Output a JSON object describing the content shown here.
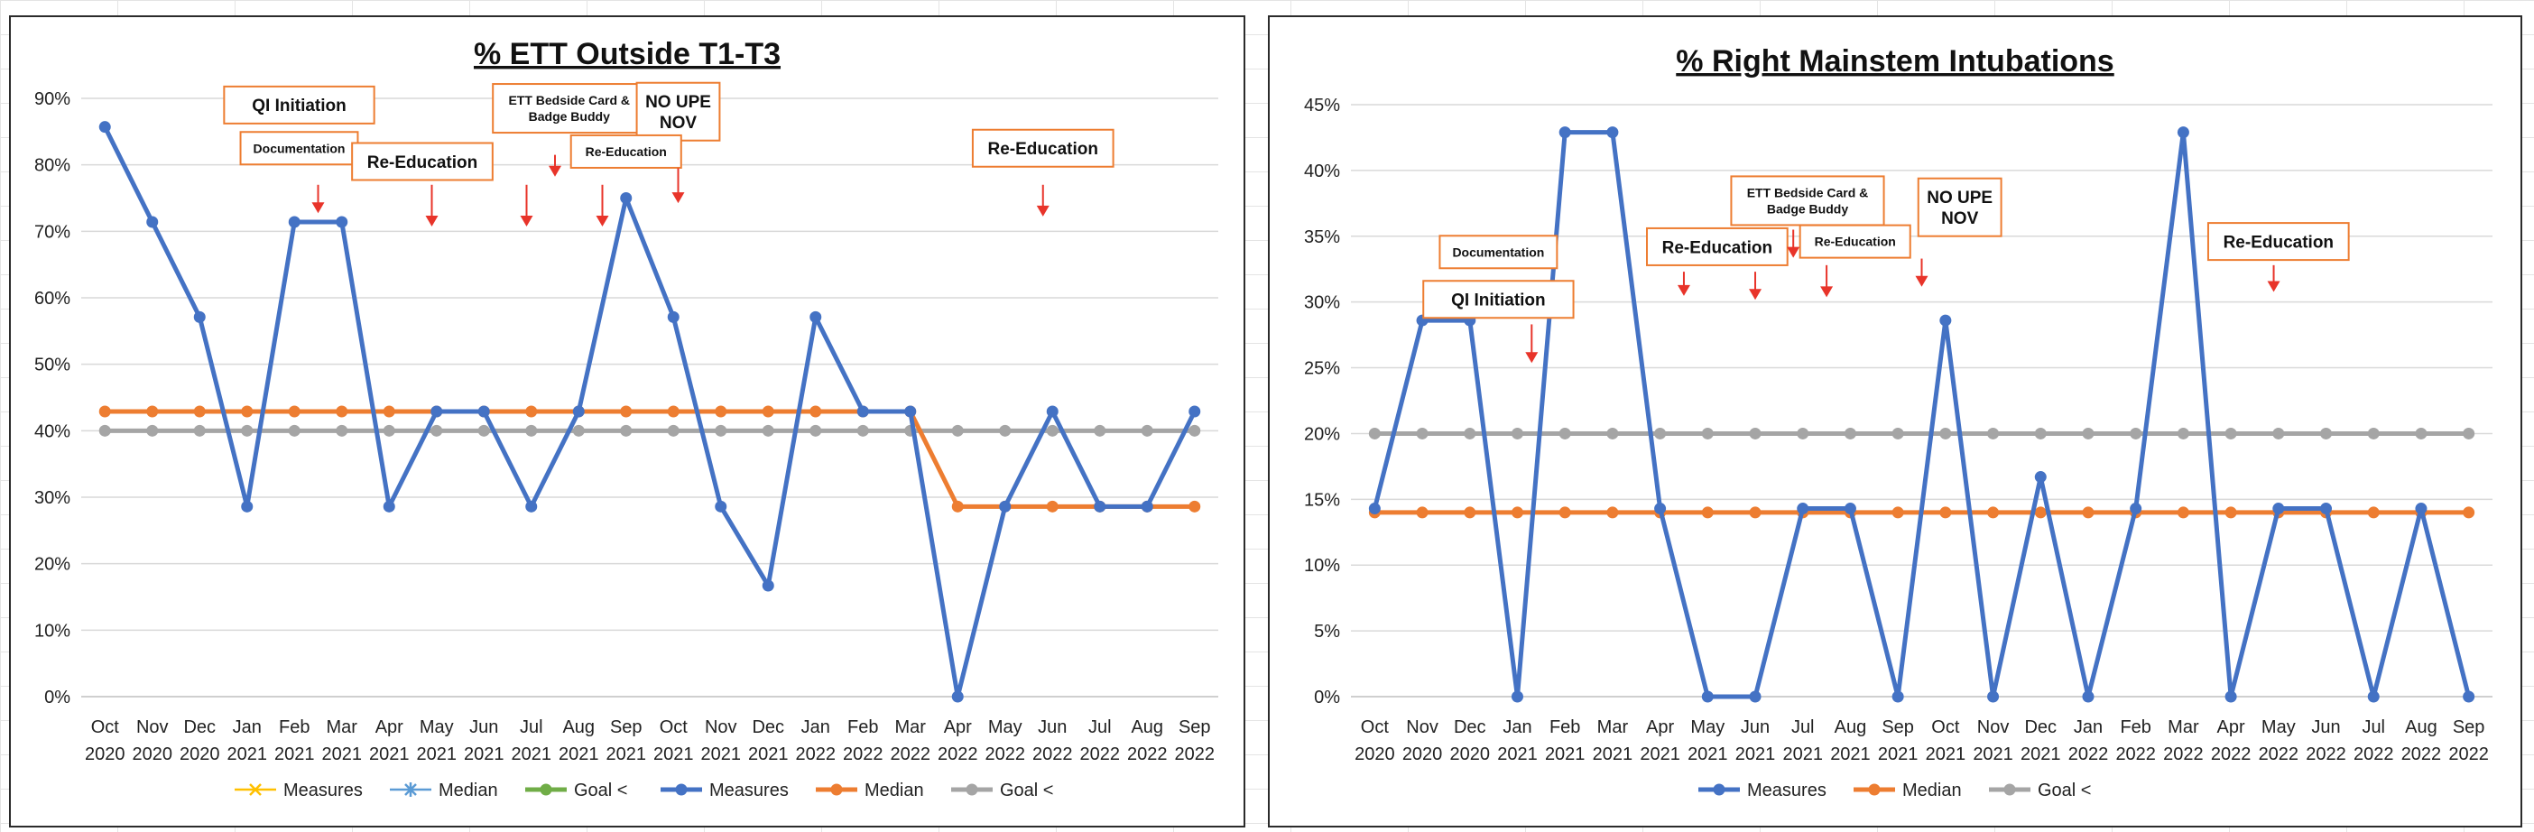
{
  "colors": {
    "measures": "#4472C4",
    "median": "#ED7D31",
    "goal": "#A5A5A5",
    "goal_old": "#70AD47",
    "measures_old": "#FFC000",
    "median_old": "#5B9BD5",
    "annotation_border": "#ED7D31",
    "arrow": "#E8342A"
  },
  "chart_data": [
    {
      "type": "line",
      "title": "% ETT Outside T1-T3",
      "categories": [
        [
          "Oct",
          "2020"
        ],
        [
          "Nov",
          "2020"
        ],
        [
          "Dec",
          "2020"
        ],
        [
          "Jan",
          "2021"
        ],
        [
          "Feb",
          "2021"
        ],
        [
          "Mar",
          "2021"
        ],
        [
          "Apr",
          "2021"
        ],
        [
          "May",
          "2021"
        ],
        [
          "Jun",
          "2021"
        ],
        [
          "Jul",
          "2021"
        ],
        [
          "Aug",
          "2021"
        ],
        [
          "Sep",
          "2021"
        ],
        [
          "Oct",
          "2021"
        ],
        [
          "Nov",
          "2021"
        ],
        [
          "Dec",
          "2021"
        ],
        [
          "Jan",
          "2022"
        ],
        [
          "Feb",
          "2022"
        ],
        [
          "Mar",
          "2022"
        ],
        [
          "Apr",
          "2022"
        ],
        [
          "May",
          "2022"
        ],
        [
          "Jun",
          "2022"
        ],
        [
          "Jul",
          "2022"
        ],
        [
          "Aug",
          "2022"
        ],
        [
          "Sep",
          "2022"
        ]
      ],
      "ylim": [
        0,
        90
      ],
      "yticks": [
        "0%",
        "10%",
        "20%",
        "30%",
        "40%",
        "50%",
        "60%",
        "70%",
        "80%",
        "90%"
      ],
      "series": [
        {
          "name": "Measures",
          "color_key": "measures",
          "marker": "circle",
          "values": [
            85.7,
            71.4,
            57.1,
            28.6,
            71.4,
            71.4,
            28.6,
            42.9,
            42.9,
            28.6,
            42.9,
            75,
            57.1,
            28.6,
            16.7,
            57.1,
            42.9,
            42.9,
            0,
            28.6,
            42.9,
            28.6,
            28.6,
            42.9
          ]
        },
        {
          "name": "Median",
          "color_key": "median",
          "marker": "circle",
          "values": [
            42.9,
            42.9,
            42.9,
            42.9,
            42.9,
            42.9,
            42.9,
            42.9,
            42.9,
            42.9,
            42.9,
            42.9,
            42.9,
            42.9,
            42.9,
            42.9,
            42.9,
            42.9,
            28.6,
            28.6,
            28.6,
            28.6,
            28.6,
            28.6
          ]
        },
        {
          "name": "Goal <",
          "color_key": "goal",
          "marker": "circle",
          "values": [
            40,
            40,
            40,
            40,
            40,
            40,
            40,
            40,
            40,
            40,
            40,
            40,
            40,
            40,
            40,
            40,
            40,
            40,
            40,
            40,
            40,
            40,
            40,
            40
          ]
        }
      ],
      "legend": [
        {
          "name": "Measures",
          "color_key": "measures_old",
          "marker": "x"
        },
        {
          "name": "Median",
          "color_key": "median_old",
          "marker": "star"
        },
        {
          "name": "Goal <",
          "color_key": "goal_old",
          "marker": "circle"
        },
        {
          "name": "Measures",
          "color_key": "measures",
          "marker": "circle"
        },
        {
          "name": "Median",
          "color_key": "median",
          "marker": "circle"
        },
        {
          "name": "Goal <",
          "color_key": "goal",
          "marker": "circle"
        }
      ],
      "legend_position": "bottom",
      "grid": true,
      "annotations": [
        {
          "lines": [
            "QI Initiation"
          ],
          "at": 4.6,
          "level": 89,
          "size": "med"
        },
        {
          "lines": [
            "Documentation"
          ],
          "at": 4.6,
          "level": 82.5,
          "size": "small"
        },
        {
          "lines": [
            "Re-Education"
          ],
          "at": 7.2,
          "level": 80.5,
          "size": "med"
        },
        {
          "lines": [
            "ETT Bedside Card &",
            "Badge Buddy"
          ],
          "at": 10.3,
          "level": 88.5,
          "size": "small"
        },
        {
          "lines": [
            "NO UPE",
            "NOV"
          ],
          "at": 12.6,
          "level": 88,
          "size": "med"
        },
        {
          "lines": [
            "Re-Education"
          ],
          "at": 11.5,
          "level": 82,
          "size": "small"
        },
        {
          "lines": [
            "Re-Education"
          ],
          "at": 20.3,
          "level": 82.5,
          "size": "med"
        }
      ],
      "arrows": [
        {
          "at": 5.0,
          "from": 77,
          "to": 73
        },
        {
          "at": 7.4,
          "from": 77,
          "to": 71
        },
        {
          "at": 9.4,
          "from": 77,
          "to": 71
        },
        {
          "at": 10.0,
          "from": 81.5,
          "to": 78.5
        },
        {
          "at": 11.0,
          "from": 77,
          "to": 71
        },
        {
          "at": 12.6,
          "from": 79.5,
          "to": 74.5
        },
        {
          "at": 20.3,
          "from": 77,
          "to": 72.5
        }
      ]
    },
    {
      "type": "line",
      "title": "% Right Mainstem Intubations",
      "categories": [
        [
          "Oct",
          "2020"
        ],
        [
          "Nov",
          "2020"
        ],
        [
          "Dec",
          "2020"
        ],
        [
          "Jan",
          "2021"
        ],
        [
          "Feb",
          "2021"
        ],
        [
          "Mar",
          "2021"
        ],
        [
          "Apr",
          "2021"
        ],
        [
          "May",
          "2021"
        ],
        [
          "Jun",
          "2021"
        ],
        [
          "Jul",
          "2021"
        ],
        [
          "Aug",
          "2021"
        ],
        [
          "Sep",
          "2021"
        ],
        [
          "Oct",
          "2021"
        ],
        [
          "Nov",
          "2021"
        ],
        [
          "Dec",
          "2021"
        ],
        [
          "Jan",
          "2022"
        ],
        [
          "Feb",
          "2022"
        ],
        [
          "Mar",
          "2022"
        ],
        [
          "Apr",
          "2022"
        ],
        [
          "May",
          "2022"
        ],
        [
          "Jun",
          "2022"
        ],
        [
          "Jul",
          "2022"
        ],
        [
          "Aug",
          "2022"
        ],
        [
          "Sep",
          "2022"
        ]
      ],
      "ylim": [
        0,
        45
      ],
      "yticks": [
        "0%",
        "5%",
        "10%",
        "15%",
        "20%",
        "25%",
        "30%",
        "35%",
        "40%",
        "45%"
      ],
      "series": [
        {
          "name": "Measures",
          "color_key": "measures",
          "marker": "circle",
          "values": [
            14.3,
            28.6,
            28.6,
            0,
            42.9,
            42.9,
            14.3,
            0,
            0,
            14.3,
            14.3,
            0,
            28.6,
            0,
            16.7,
            0,
            14.3,
            42.9,
            0,
            14.3,
            14.3,
            0,
            14.3,
            0
          ]
        },
        {
          "name": "Median",
          "color_key": "median",
          "marker": "circle",
          "values": [
            14,
            14,
            14,
            14,
            14,
            14,
            14,
            14,
            14,
            14,
            14,
            14,
            14,
            14,
            14,
            14,
            14,
            14,
            14,
            14,
            14,
            14,
            14,
            14
          ]
        },
        {
          "name": "Goal <",
          "color_key": "goal",
          "marker": "circle",
          "values": [
            20,
            20,
            20,
            20,
            20,
            20,
            20,
            20,
            20,
            20,
            20,
            20,
            20,
            20,
            20,
            20,
            20,
            20,
            20,
            20,
            20,
            20,
            20,
            20
          ]
        }
      ],
      "legend": [
        {
          "name": "Measures",
          "color_key": "measures",
          "marker": "circle"
        },
        {
          "name": "Median",
          "color_key": "median",
          "marker": "circle"
        },
        {
          "name": "Goal <",
          "color_key": "goal",
          "marker": "circle"
        }
      ],
      "legend_position": "bottom",
      "grid": true,
      "annotations": [
        {
          "lines": [
            "Documentation"
          ],
          "at": 3.1,
          "level": 33.8,
          "size": "small"
        },
        {
          "lines": [
            "QI Initiation"
          ],
          "at": 3.1,
          "level": 30.2,
          "size": "med"
        },
        {
          "lines": [
            "Re-Education"
          ],
          "at": 7.7,
          "level": 34.2,
          "size": "med"
        },
        {
          "lines": [
            "ETT Bedside Card &",
            "Badge Buddy"
          ],
          "at": 9.6,
          "level": 37.7,
          "size": "small"
        },
        {
          "lines": [
            "Re-Education"
          ],
          "at": 10.6,
          "level": 34.6,
          "size": "small"
        },
        {
          "lines": [
            "NO UPE",
            "NOV"
          ],
          "at": 12.8,
          "level": 37.2,
          "size": "med"
        },
        {
          "lines": [
            "Re-Education"
          ],
          "at": 19.5,
          "level": 34.6,
          "size": "med"
        }
      ],
      "arrows": [
        {
          "at": 3.8,
          "from": 28.3,
          "to": 25.5
        },
        {
          "at": 7.0,
          "from": 32.3,
          "to": 30.6
        },
        {
          "at": 8.5,
          "from": 32.3,
          "to": 30.3
        },
        {
          "at": 9.3,
          "from": 35.5,
          "to": 33.5
        },
        {
          "at": 10.0,
          "from": 32.8,
          "to": 30.5
        },
        {
          "at": 12.0,
          "from": 33.3,
          "to": 31.3
        },
        {
          "at": 19.4,
          "from": 32.8,
          "to": 30.9
        }
      ]
    }
  ]
}
